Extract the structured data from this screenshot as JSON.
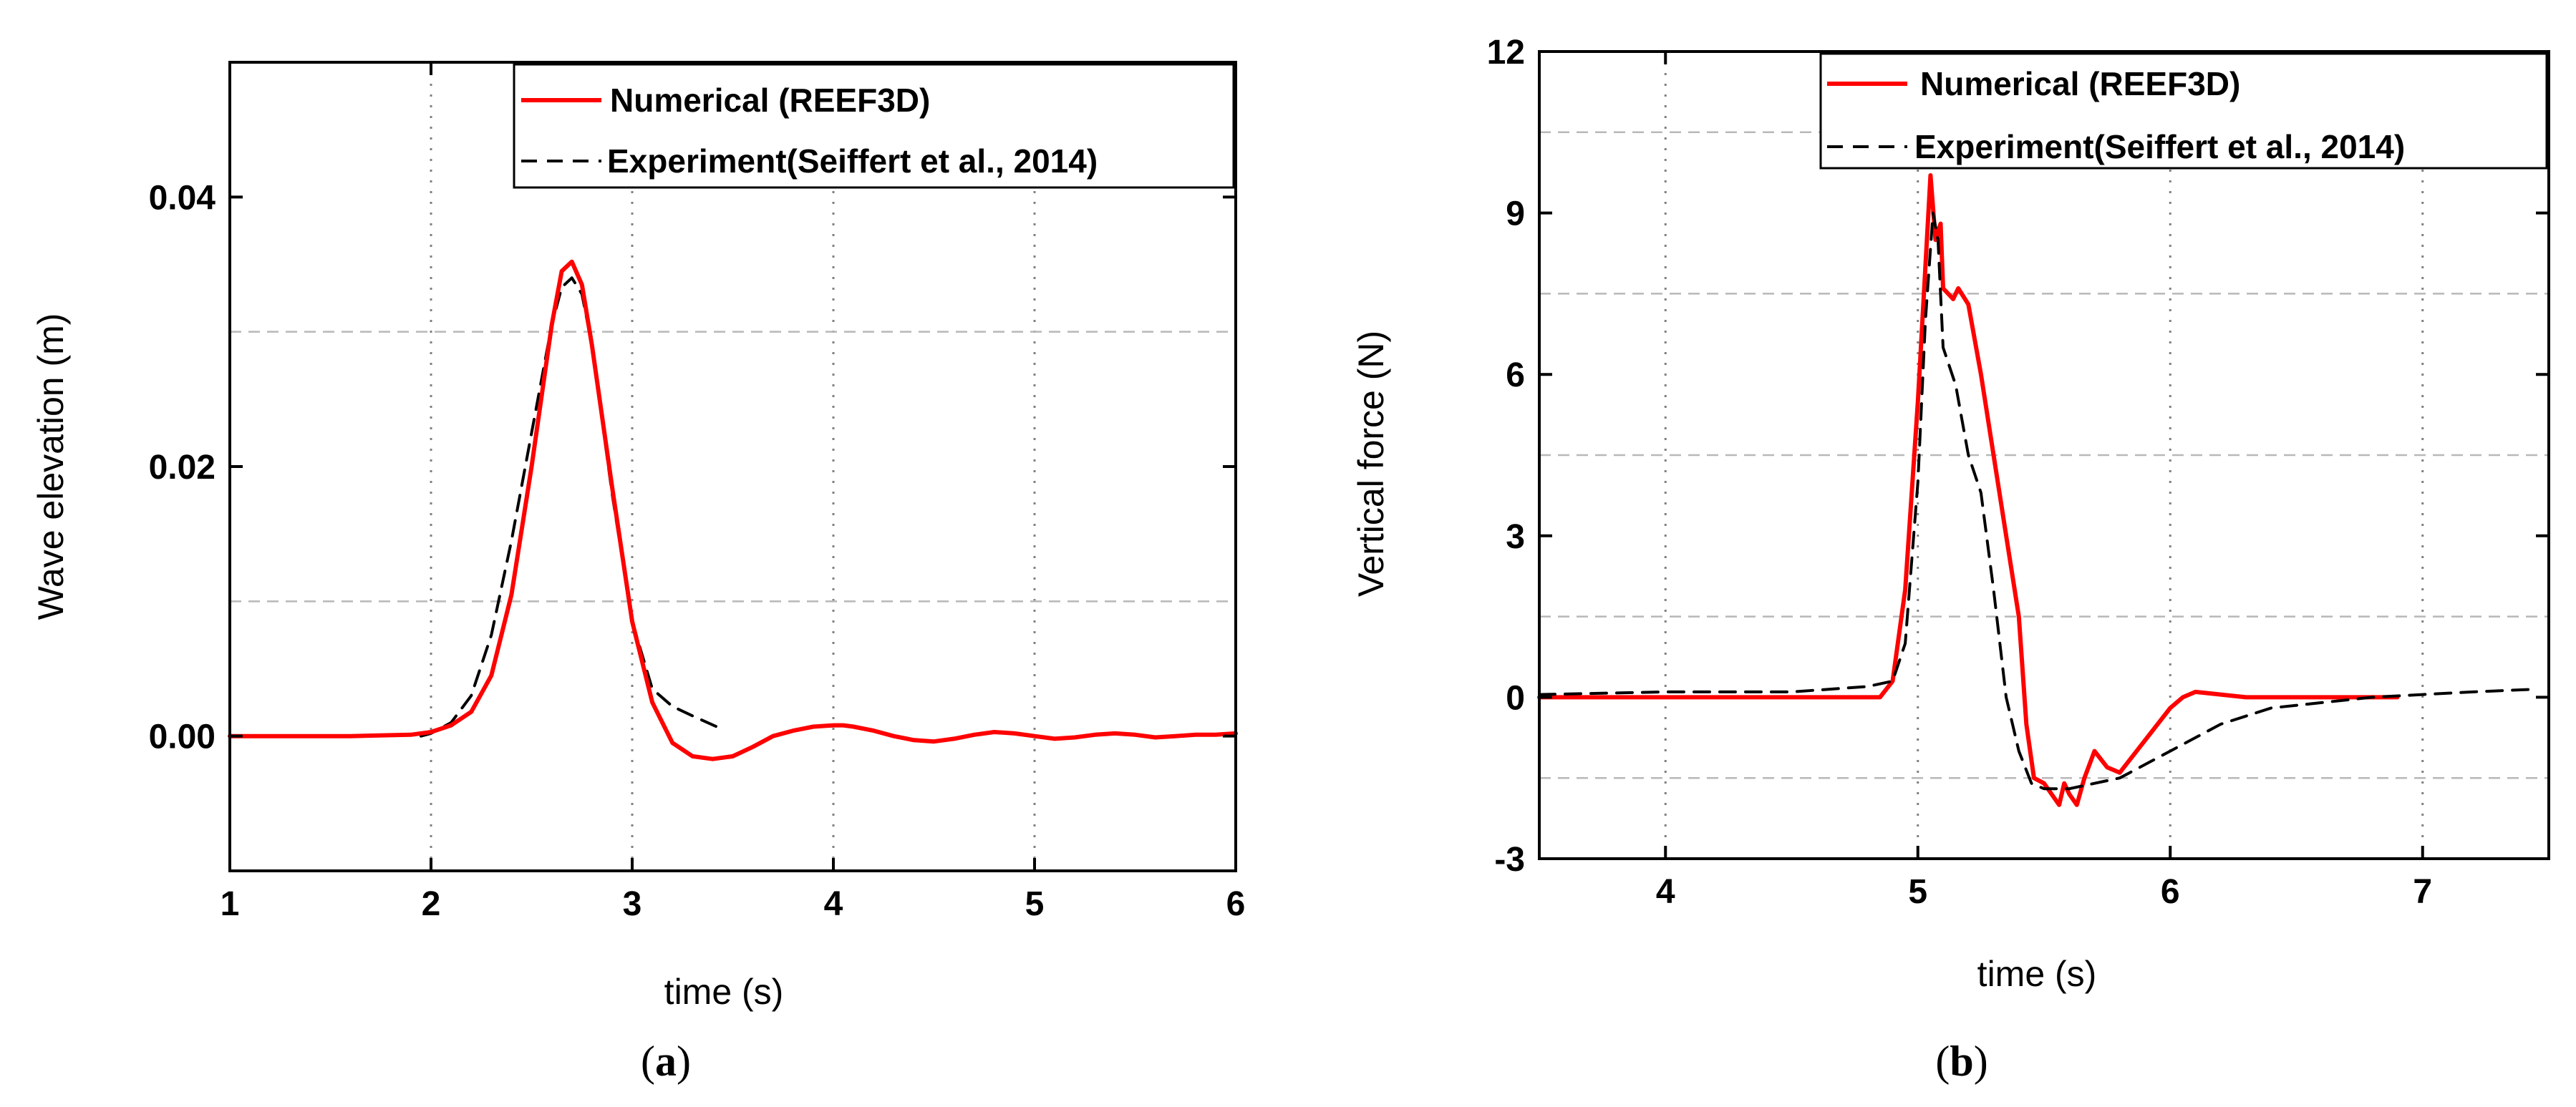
{
  "chart_data": [
    {
      "type": "line",
      "caption_letter": "a",
      "xlabel": "time (s)",
      "ylabel": "Wave elevation (m)",
      "xlim": [
        1,
        6
      ],
      "ylim": [
        -0.01,
        0.05
      ],
      "xticks": [
        1,
        2,
        3,
        4,
        5,
        6
      ],
      "xtick_labels": [
        "1",
        "2",
        "3",
        "4",
        "5",
        "6"
      ],
      "yticks": [
        0.0,
        0.02,
        0.04
      ],
      "ytick_labels": [
        "0.00",
        "0.02",
        "0.04"
      ],
      "grid_x": [
        2,
        3,
        4,
        5
      ],
      "grid_y": [
        0.01,
        0.03
      ],
      "legend_position": "top-right",
      "series": [
        {
          "name": "Numerical (REEF3D)",
          "color": "#ff0000",
          "style": "solid",
          "x": [
            1.0,
            1.6,
            1.9,
            2.0,
            2.1,
            2.2,
            2.3,
            2.4,
            2.5,
            2.6,
            2.65,
            2.7,
            2.75,
            2.8,
            2.9,
            3.0,
            3.1,
            3.2,
            3.3,
            3.4,
            3.5,
            3.6,
            3.7,
            3.8,
            3.9,
            4.0,
            4.05,
            4.1,
            4.2,
            4.3,
            4.4,
            4.5,
            4.6,
            4.7,
            4.8,
            4.9,
            5.0,
            5.1,
            5.2,
            5.3,
            5.4,
            5.5,
            5.6,
            5.7,
            5.8,
            5.9,
            6.0
          ],
          "y": [
            0.0,
            0.0,
            0.0001,
            0.0003,
            0.0008,
            0.0018,
            0.0045,
            0.0105,
            0.02,
            0.0305,
            0.0345,
            0.0352,
            0.0335,
            0.029,
            0.0185,
            0.0085,
            0.0025,
            -0.0005,
            -0.0015,
            -0.0017,
            -0.0015,
            -0.0008,
            0.0,
            0.0004,
            0.0007,
            0.0008,
            0.0008,
            0.0007,
            0.0004,
            0.0,
            -0.0003,
            -0.0004,
            -0.0002,
            0.0001,
            0.0003,
            0.0002,
            0.0,
            -0.0002,
            -0.0001,
            0.0001,
            0.0002,
            0.0001,
            -0.0001,
            0.0,
            0.0001,
            0.0001,
            0.0002
          ]
        },
        {
          "name": "Experiment(Seiffert et al., 2014)",
          "color": "#000000",
          "style": "dashed",
          "x": [
            1.95,
            2.0,
            2.1,
            2.2,
            2.3,
            2.4,
            2.5,
            2.6,
            2.65,
            2.7,
            2.75,
            2.8,
            2.9,
            3.0,
            3.1,
            3.2,
            3.3,
            3.45
          ],
          "y": [
            0.0,
            0.0002,
            0.001,
            0.003,
            0.0075,
            0.0145,
            0.0225,
            0.0305,
            0.0333,
            0.034,
            0.0328,
            0.029,
            0.018,
            0.0085,
            0.0035,
            0.0022,
            0.0015,
            0.0005
          ]
        }
      ]
    },
    {
      "type": "line",
      "caption_letter": "b",
      "xlabel": "time (s)",
      "ylabel": "Vertical force (N)",
      "xlim": [
        3.5,
        7.5
      ],
      "ylim": [
        -3,
        12
      ],
      "xticks": [
        4,
        5,
        6,
        7
      ],
      "xtick_labels": [
        "4",
        "5",
        "6",
        "7"
      ],
      "yticks": [
        -3,
        0,
        3,
        6,
        9,
        12
      ],
      "ytick_labels": [
        "-3",
        "0",
        "3",
        "6",
        "9",
        "12"
      ],
      "grid_x": [
        4,
        5,
        6,
        7
      ],
      "grid_y": [
        -1.5,
        1.5,
        4.5,
        7.5,
        10.5
      ],
      "legend_position": "top-right",
      "series": [
        {
          "name": "Numerical (REEF3D)",
          "color": "#ff0000",
          "style": "solid",
          "x": [
            3.5,
            4.0,
            4.5,
            4.85,
            4.9,
            4.95,
            5.0,
            5.03,
            5.05,
            5.07,
            5.09,
            5.1,
            5.12,
            5.14,
            5.16,
            5.2,
            5.25,
            5.3,
            5.35,
            5.4,
            5.43,
            5.46,
            5.5,
            5.53,
            5.56,
            5.58,
            5.6,
            5.63,
            5.66,
            5.7,
            5.75,
            5.8,
            5.9,
            6.0,
            6.05,
            6.1,
            6.3,
            6.5,
            6.9
          ],
          "y": [
            0.0,
            0.0,
            0.0,
            0.0,
            0.3,
            2.0,
            5.5,
            8.0,
            9.7,
            8.5,
            8.8,
            7.6,
            7.5,
            7.4,
            7.6,
            7.3,
            6.0,
            4.5,
            3.0,
            1.5,
            -0.5,
            -1.5,
            -1.6,
            -1.8,
            -2.0,
            -1.6,
            -1.8,
            -2.0,
            -1.5,
            -1.0,
            -1.3,
            -1.4,
            -0.8,
            -0.2,
            0.0,
            0.1,
            0.0,
            0.0,
            0.0
          ]
        },
        {
          "name": "Experiment(Seiffert et al., 2014)",
          "color": "#000000",
          "style": "dashed",
          "x": [
            3.5,
            4.0,
            4.5,
            4.8,
            4.9,
            4.95,
            5.0,
            5.03,
            5.06,
            5.08,
            5.1,
            5.15,
            5.2,
            5.25,
            5.3,
            5.35,
            5.4,
            5.45,
            5.5,
            5.6,
            5.8,
            6.0,
            6.2,
            6.4,
            6.6,
            6.8,
            7.0,
            7.2,
            7.45
          ],
          "y": [
            0.05,
            0.1,
            0.1,
            0.2,
            0.3,
            1.0,
            4.0,
            7.0,
            9.0,
            8.5,
            6.5,
            5.8,
            4.5,
            3.8,
            2.0,
            0.0,
            -1.0,
            -1.6,
            -1.7,
            -1.7,
            -1.5,
            -1.0,
            -0.5,
            -0.2,
            -0.1,
            0.0,
            0.05,
            0.1,
            0.15
          ]
        }
      ]
    }
  ]
}
